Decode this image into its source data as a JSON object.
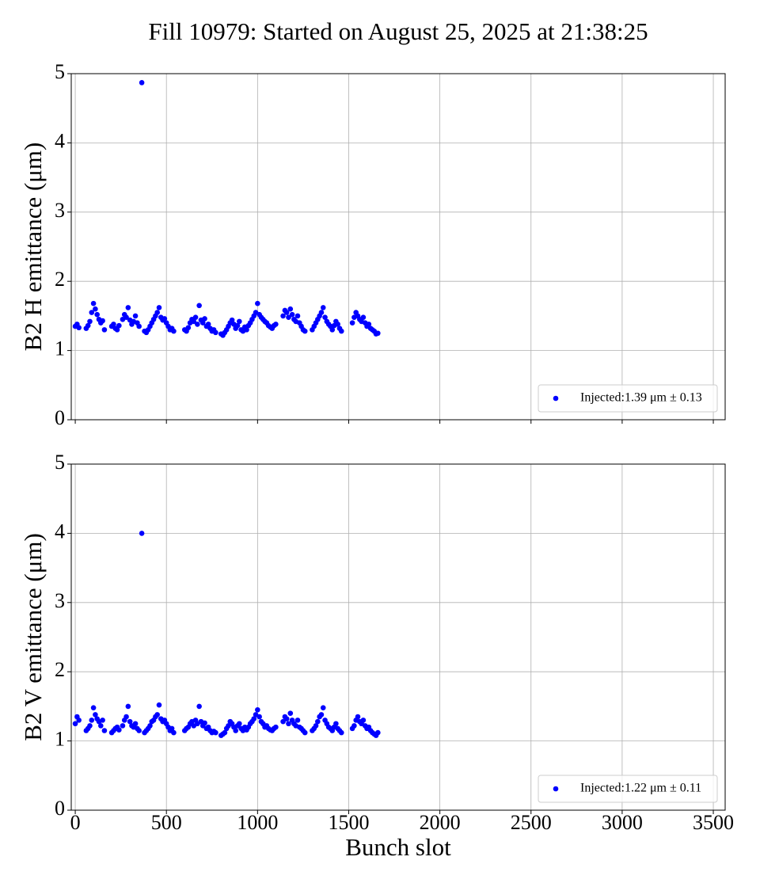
{
  "title": "Fill 10979: Started on August 25, 2025 at 21:38:25",
  "chart_data": [
    {
      "type": "scatter",
      "ylabel": "B2 H emittance (μm)",
      "show_xtick_labels": false,
      "grid": true,
      "legend": "lower right",
      "xlim": [
        -22,
        3565
      ],
      "ylim": [
        0,
        5
      ],
      "xticks": [
        0,
        500,
        1000,
        1500,
        2000,
        2500,
        3000,
        3500
      ],
      "yticks": [
        0,
        1,
        2,
        3,
        4,
        5
      ],
      "series": [
        {
          "name": "Injected:1.39 μm ± 0.13",
          "color": "#0000ff",
          "x": [
            0,
            10,
            20,
            60,
            70,
            80,
            90,
            100,
            110,
            120,
            130,
            140,
            150,
            160,
            200,
            210,
            220,
            230,
            240,
            260,
            270,
            280,
            290,
            300,
            310,
            320,
            330,
            340,
            350,
            365,
            380,
            390,
            400,
            410,
            420,
            430,
            440,
            450,
            460,
            470,
            480,
            490,
            500,
            510,
            520,
            530,
            540,
            600,
            610,
            620,
            630,
            640,
            650,
            660,
            670,
            680,
            690,
            700,
            710,
            720,
            730,
            740,
            750,
            760,
            770,
            800,
            810,
            820,
            830,
            840,
            850,
            860,
            870,
            880,
            890,
            900,
            910,
            920,
            930,
            940,
            950,
            960,
            970,
            980,
            990,
            1000,
            1010,
            1020,
            1030,
            1040,
            1050,
            1060,
            1070,
            1080,
            1090,
            1100,
            1140,
            1150,
            1160,
            1170,
            1180,
            1190,
            1200,
            1210,
            1220,
            1230,
            1240,
            1250,
            1260,
            1300,
            1310,
            1320,
            1330,
            1340,
            1350,
            1360,
            1370,
            1380,
            1390,
            1400,
            1410,
            1420,
            1430,
            1440,
            1450,
            1460,
            1520,
            1530,
            1540,
            1550,
            1560,
            1570,
            1580,
            1590,
            1600,
            1610,
            1620,
            1630,
            1640,
            1650,
            1660
          ],
          "values": [
            1.35,
            1.38,
            1.33,
            1.32,
            1.36,
            1.42,
            1.55,
            1.68,
            1.6,
            1.52,
            1.45,
            1.4,
            1.43,
            1.3,
            1.35,
            1.38,
            1.32,
            1.3,
            1.36,
            1.45,
            1.52,
            1.48,
            1.62,
            1.44,
            1.38,
            1.42,
            1.5,
            1.4,
            1.35,
            4.87,
            1.28,
            1.26,
            1.3,
            1.35,
            1.4,
            1.45,
            1.5,
            1.55,
            1.62,
            1.48,
            1.44,
            1.46,
            1.4,
            1.35,
            1.3,
            1.32,
            1.28,
            1.3,
            1.28,
            1.33,
            1.4,
            1.45,
            1.42,
            1.48,
            1.38,
            1.65,
            1.44,
            1.4,
            1.46,
            1.35,
            1.38,
            1.32,
            1.28,
            1.3,
            1.26,
            1.24,
            1.22,
            1.26,
            1.3,
            1.35,
            1.4,
            1.44,
            1.38,
            1.32,
            1.36,
            1.42,
            1.3,
            1.28,
            1.34,
            1.3,
            1.36,
            1.4,
            1.45,
            1.5,
            1.55,
            1.68,
            1.52,
            1.48,
            1.45,
            1.42,
            1.4,
            1.36,
            1.34,
            1.32,
            1.36,
            1.38,
            1.5,
            1.58,
            1.55,
            1.48,
            1.6,
            1.52,
            1.45,
            1.42,
            1.5,
            1.4,
            1.35,
            1.3,
            1.28,
            1.3,
            1.35,
            1.4,
            1.45,
            1.5,
            1.55,
            1.62,
            1.48,
            1.42,
            1.38,
            1.35,
            1.3,
            1.36,
            1.42,
            1.38,
            1.32,
            1.28,
            1.4,
            1.48,
            1.55,
            1.5,
            1.45,
            1.42,
            1.48,
            1.4,
            1.35,
            1.38,
            1.32,
            1.3,
            1.28,
            1.24,
            1.25
          ]
        }
      ]
    },
    {
      "type": "scatter",
      "ylabel": "B2 V emittance (μm)",
      "xlabel": "Bunch slot",
      "show_xtick_labels": true,
      "grid": true,
      "legend": "lower right",
      "xlim": [
        -22,
        3565
      ],
      "ylim": [
        0,
        5
      ],
      "xticks": [
        0,
        500,
        1000,
        1500,
        2000,
        2500,
        3000,
        3500
      ],
      "yticks": [
        0,
        1,
        2,
        3,
        4,
        5
      ],
      "series": [
        {
          "name": "Injected:1.22 μm ± 0.11",
          "color": "#0000ff",
          "x": [
            0,
            10,
            20,
            60,
            70,
            80,
            90,
            100,
            110,
            120,
            130,
            140,
            150,
            160,
            200,
            210,
            220,
            230,
            240,
            260,
            270,
            280,
            290,
            300,
            310,
            320,
            330,
            340,
            350,
            365,
            380,
            390,
            400,
            410,
            420,
            430,
            440,
            450,
            460,
            470,
            480,
            490,
            500,
            510,
            520,
            530,
            540,
            600,
            610,
            620,
            630,
            640,
            650,
            660,
            670,
            680,
            690,
            700,
            710,
            720,
            730,
            740,
            750,
            760,
            770,
            800,
            810,
            820,
            830,
            840,
            850,
            860,
            870,
            880,
            890,
            900,
            910,
            920,
            930,
            940,
            950,
            960,
            970,
            980,
            990,
            1000,
            1010,
            1020,
            1030,
            1040,
            1050,
            1060,
            1070,
            1080,
            1090,
            1100,
            1140,
            1150,
            1160,
            1170,
            1180,
            1190,
            1200,
            1210,
            1220,
            1230,
            1240,
            1250,
            1260,
            1300,
            1310,
            1320,
            1330,
            1340,
            1350,
            1360,
            1370,
            1380,
            1390,
            1400,
            1410,
            1420,
            1430,
            1440,
            1450,
            1460,
            1520,
            1530,
            1540,
            1550,
            1560,
            1570,
            1580,
            1590,
            1600,
            1610,
            1620,
            1630,
            1640,
            1650,
            1660
          ],
          "values": [
            1.25,
            1.35,
            1.3,
            1.15,
            1.18,
            1.22,
            1.3,
            1.48,
            1.38,
            1.32,
            1.28,
            1.22,
            1.3,
            1.15,
            1.12,
            1.15,
            1.18,
            1.2,
            1.16,
            1.22,
            1.3,
            1.35,
            1.5,
            1.28,
            1.22,
            1.2,
            1.25,
            1.18,
            1.15,
            4.0,
            1.12,
            1.15,
            1.18,
            1.22,
            1.28,
            1.3,
            1.35,
            1.38,
            1.52,
            1.32,
            1.28,
            1.3,
            1.25,
            1.2,
            1.15,
            1.18,
            1.12,
            1.15,
            1.18,
            1.2,
            1.25,
            1.28,
            1.22,
            1.3,
            1.25,
            1.5,
            1.28,
            1.22,
            1.26,
            1.18,
            1.2,
            1.15,
            1.12,
            1.14,
            1.12,
            1.08,
            1.1,
            1.12,
            1.18,
            1.22,
            1.28,
            1.25,
            1.2,
            1.15,
            1.22,
            1.25,
            1.18,
            1.15,
            1.2,
            1.16,
            1.2,
            1.25,
            1.28,
            1.32,
            1.38,
            1.45,
            1.35,
            1.28,
            1.25,
            1.2,
            1.22,
            1.18,
            1.16,
            1.15,
            1.18,
            1.2,
            1.28,
            1.35,
            1.32,
            1.25,
            1.4,
            1.3,
            1.25,
            1.22,
            1.3,
            1.2,
            1.18,
            1.15,
            1.12,
            1.15,
            1.18,
            1.22,
            1.28,
            1.35,
            1.38,
            1.48,
            1.3,
            1.25,
            1.2,
            1.18,
            1.15,
            1.2,
            1.25,
            1.18,
            1.15,
            1.12,
            1.18,
            1.22,
            1.3,
            1.35,
            1.28,
            1.25,
            1.3,
            1.22,
            1.18,
            1.2,
            1.15,
            1.12,
            1.1,
            1.08,
            1.12
          ]
        }
      ]
    }
  ]
}
